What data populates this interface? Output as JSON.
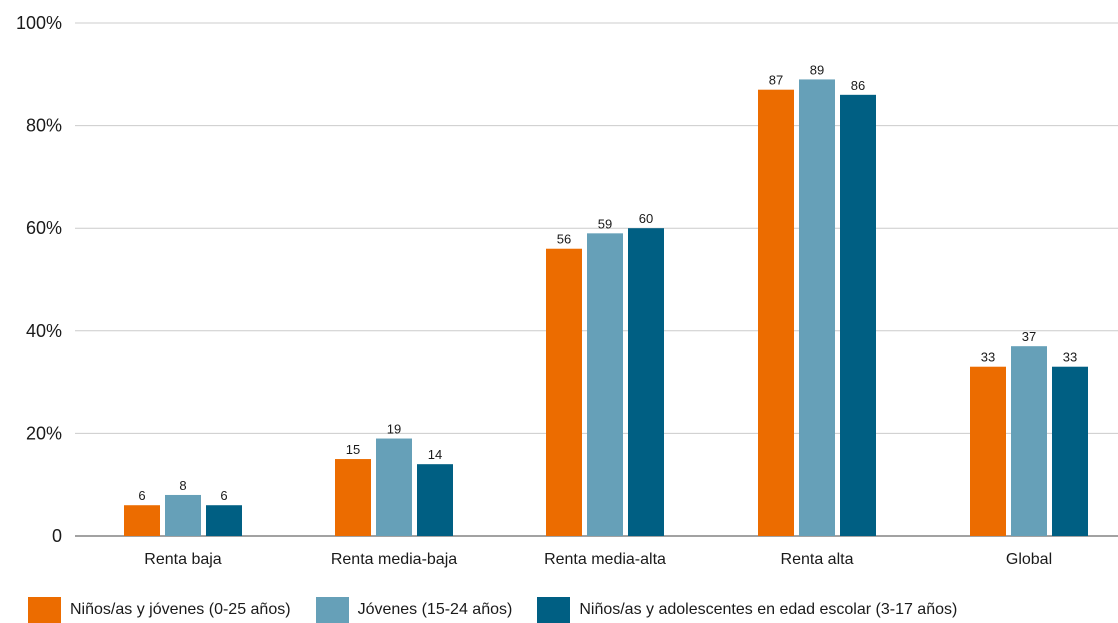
{
  "chart_data": {
    "type": "bar",
    "categories": [
      "Renta baja",
      "Renta media-baja",
      "Renta media-alta",
      "Renta alta",
      "Global"
    ],
    "series": [
      {
        "name": "Niños/as y jóvenes (0-25 años)",
        "color": "#ec6c00",
        "values": [
          6,
          15,
          56,
          87,
          33
        ]
      },
      {
        "name": "Jóvenes (15-24 años)",
        "color": "#66a0b8",
        "values": [
          8,
          19,
          59,
          89,
          37
        ]
      },
      {
        "name": "Niños/as y adolescentes en edad escolar (3-17 años)",
        "color": "#005f83",
        "values": [
          6,
          14,
          60,
          86,
          33
        ]
      }
    ],
    "yticks": [
      "0",
      "20%",
      "40%",
      "60%",
      "80%",
      "100%"
    ],
    "ylim": [
      0,
      100
    ],
    "grid": true,
    "legend": "bottom-left"
  }
}
